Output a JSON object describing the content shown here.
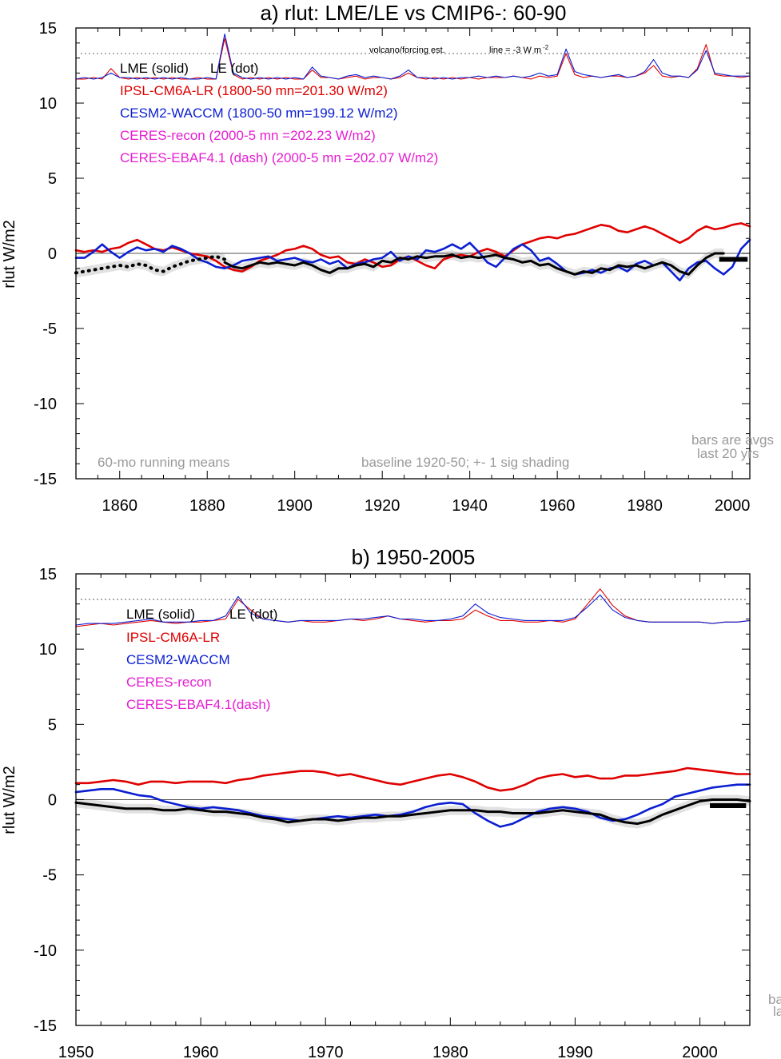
{
  "chart_data": [
    {
      "type": "line",
      "title": "a) rlut: LME/LE vs CMIP6-: 60-90",
      "ylabel": "rlut W/m2",
      "xlabel": "",
      "xlim": [
        1850,
        2004
      ],
      "ylim": [
        -15,
        15
      ],
      "xticks": [
        1860,
        1880,
        1900,
        1920,
        1940,
        1960,
        1980,
        2000
      ],
      "yticks": [
        15,
        10,
        5,
        0,
        -5,
        -10,
        -15
      ],
      "x_step": 2,
      "legend": {
        "lme": "LME (solid)",
        "le": "LE (dot)",
        "ipsl": "IPSL-CM6A-LR (1800-50 mn=201.30 W/m2)",
        "cesm": "CESM2-WACCM (1800-50 mn=199.12 W/m2)",
        "ceres_recon": "CERES-recon (2000-5 mn =202.23 W/m2)",
        "ceres_ebaf": "CERES-EBAF4.1 (dash) (2000-5 mn =202.07 W/m2)"
      },
      "annotations": {
        "volcano": "volcano/forcing est.",
        "line_ref": "line = -3 W m",
        "line_ref_sup": "-2",
        "running": "60-mo running means",
        "baseline": "baseline 1920-50; +- 1 sig shading",
        "bars1": "bars are avgs",
        "bars2": "last 20 yrs"
      },
      "reference_line_y": 13.3,
      "zero_line_y": 0,
      "series": [
        {
          "name": "IPSL-CM6A-LR (volcanic forcing est.)",
          "color": "#e00000",
          "start": 1850,
          "values": [
            11.6,
            11.6,
            11.7,
            11.6,
            12.3,
            11.7,
            11.6,
            11.7,
            11.6,
            11.7,
            11.6,
            11.7,
            11.6,
            11.6,
            11.7,
            11.6,
            11.6,
            14.3,
            11.9,
            11.6,
            11.7,
            11.6,
            11.7,
            11.6,
            11.7,
            11.6,
            11.6,
            12.2,
            11.7,
            11.7,
            11.6,
            11.7,
            11.8,
            11.6,
            11.7,
            11.7,
            11.6,
            11.7,
            12.0,
            11.7,
            11.6,
            11.7,
            11.6,
            11.7,
            11.6,
            11.7,
            11.6,
            11.7,
            11.7,
            11.7,
            11.8,
            11.7,
            11.6,
            11.8,
            11.7,
            11.8,
            13.3,
            11.9,
            11.7,
            11.8,
            11.7,
            11.8,
            11.8,
            11.7,
            11.8,
            12.0,
            12.5,
            11.8,
            11.7,
            11.8,
            11.7,
            12.3,
            13.9,
            11.9,
            11.8,
            11.8,
            11.7,
            11.8
          ]
        },
        {
          "name": "CESM2-WACCM (volcanic forcing est.)",
          "color": "#0a1ed2",
          "start": 1850,
          "values": [
            11.6,
            11.7,
            11.6,
            11.7,
            12.0,
            11.7,
            11.7,
            11.6,
            11.7,
            11.6,
            11.7,
            11.6,
            11.7,
            11.6,
            11.6,
            11.7,
            11.6,
            14.6,
            12.0,
            11.7,
            11.6,
            11.7,
            11.6,
            11.7,
            11.6,
            11.7,
            11.6,
            12.4,
            11.8,
            11.7,
            11.6,
            11.8,
            11.9,
            11.7,
            11.8,
            11.7,
            11.6,
            11.8,
            12.2,
            11.7,
            11.7,
            11.6,
            11.7,
            11.6,
            11.7,
            11.7,
            11.8,
            11.7,
            11.8,
            11.7,
            11.8,
            11.7,
            11.8,
            12.0,
            11.8,
            11.9,
            13.6,
            12.1,
            11.9,
            11.8,
            11.7,
            11.8,
            11.9,
            11.7,
            11.8,
            12.1,
            12.9,
            12.0,
            11.8,
            11.8,
            11.7,
            12.2,
            13.5,
            12.0,
            11.9,
            11.8,
            11.8,
            11.8
          ]
        },
        {
          "name": "IPSL-CM6A-LR",
          "color": "#e00000",
          "start": 1850,
          "values": [
            0.2,
            0.1,
            0.2,
            0.1,
            0.3,
            0.4,
            0.7,
            0.9,
            0.6,
            0.3,
            0.2,
            0.4,
            0.2,
            0.0,
            -0.1,
            -0.2,
            -0.5,
            -0.9,
            -1.1,
            -1.2,
            -0.9,
            -0.5,
            -0.3,
            -0.1,
            0.2,
            0.3,
            0.5,
            0.3,
            -0.1,
            -0.3,
            -0.2,
            -0.6,
            -0.7,
            -0.4,
            -0.6,
            -0.9,
            -0.8,
            -0.4,
            -0.2,
            -0.5,
            -0.8,
            -1.0,
            -0.4,
            -0.2,
            -0.1,
            -0.2,
            0.1,
            0.3,
            0.1,
            -0.2,
            0.2,
            0.6,
            0.8,
            1.0,
            1.1,
            1.0,
            1.2,
            1.3,
            1.5,
            1.7,
            1.9,
            1.8,
            1.5,
            1.4,
            1.6,
            1.8,
            1.6,
            1.3,
            1.0,
            0.7,
            1.0,
            1.5,
            1.8,
            1.6,
            1.7,
            1.9,
            2.0,
            1.8
          ]
        },
        {
          "name": "CESM2-WACCM",
          "color": "#0a1ed2",
          "start": 1850,
          "values": [
            -0.3,
            -0.3,
            0.1,
            0.6,
            0.1,
            -0.3,
            0.1,
            0.4,
            0.2,
            0.3,
            0.1,
            0.5,
            0.3,
            0.0,
            -0.4,
            -0.6,
            -0.9,
            -1.0,
            -0.8,
            -0.5,
            -0.4,
            -0.3,
            -0.2,
            -0.5,
            -0.4,
            -0.3,
            -0.5,
            -0.6,
            -0.4,
            -0.7,
            -0.5,
            -1.0,
            -0.7,
            -0.6,
            -0.4,
            -0.3,
            0.1,
            -0.5,
            -0.2,
            -0.4,
            0.2,
            0.1,
            0.3,
            0.6,
            0.3,
            0.7,
            0.1,
            -0.6,
            -0.9,
            -0.3,
            0.3,
            0.6,
            0.2,
            -0.5,
            -0.3,
            -0.7,
            -1.2,
            -1.4,
            -1.3,
            -1.1,
            -1.3,
            -1.0,
            -0.9,
            -1.2,
            -0.7,
            -0.5,
            -0.8,
            -0.6,
            -1.2,
            -1.8,
            -1.0,
            -0.6,
            -0.5,
            -1.0,
            -1.4,
            -0.9,
            0.3,
            0.9
          ]
        },
        {
          "name": "LME",
          "color": "#000000",
          "start": 1884,
          "values": [
            -0.6,
            -0.9,
            -1.0,
            -0.8,
            -0.6,
            -0.7,
            -0.6,
            -0.7,
            -0.8,
            -0.6,
            -0.8,
            -1.1,
            -1.3,
            -1.0,
            -1.0,
            -0.8,
            -0.7,
            -0.9,
            -0.5,
            -0.6,
            -0.3,
            -0.4,
            -0.2,
            -0.3,
            -0.2,
            -0.2,
            -0.1,
            -0.3,
            -0.2,
            -0.3,
            -0.2,
            -0.1,
            -0.3,
            -0.4,
            -0.6,
            -0.5,
            -0.8,
            -0.7,
            -1.0,
            -1.2,
            -1.4,
            -1.2,
            -1.3,
            -1.0,
            -1.1,
            -0.8,
            -0.9,
            -0.8,
            -1.0,
            -0.8,
            -0.6,
            -0.8,
            -1.2,
            -1.4,
            -0.8,
            -0.3,
            0.0,
            0.0
          ]
        },
        {
          "name": "LE",
          "color": "#000000",
          "start": 1850,
          "values": [
            -1.3,
            -1.2,
            -1.1,
            -1.0,
            -0.9,
            -0.8,
            -0.9,
            -0.7,
            -0.8,
            -1.1,
            -1.2,
            -0.9,
            -0.7,
            -0.5,
            -0.4,
            -0.3,
            -0.2,
            -0.4
          ]
        }
      ],
      "bars": [
        {
          "name": "LME last 20 yrs",
          "y": -0.4,
          "x0": 1997,
          "x1": 2003.5
        }
      ]
    },
    {
      "type": "line",
      "title": "b) 1950-2005",
      "ylabel": "rlut W/m2",
      "xlabel": "",
      "xlim": [
        1950,
        2004
      ],
      "ylim": [
        -15,
        15
      ],
      "xticks": [
        1950,
        1960,
        1970,
        1980,
        1990,
        2000
      ],
      "yticks": [
        15,
        10,
        5,
        0,
        -5,
        -10,
        -15
      ],
      "x_step": 1,
      "legend": {
        "lme": "LME (solid)",
        "le": "LE (dot)",
        "ipsl": "IPSL-CM6A-LR",
        "cesm": "CESM2-WACCM",
        "ceres_recon": "CERES-recon",
        "ceres_ebaf": "CERES-EBAF4.1(dash)"
      },
      "annotations": {
        "bars1": "ba",
        "bars2": "la"
      },
      "reference_line_y": 13.3,
      "zero_line_y": 0,
      "series": [
        {
          "name": "IPSL-CM6A-LR (volcanic forcing est.)",
          "color": "#e00000",
          "start": 1950,
          "values": [
            11.5,
            11.6,
            11.7,
            11.6,
            11.7,
            11.8,
            11.9,
            11.8,
            11.7,
            11.8,
            11.8,
            11.9,
            12.0,
            13.3,
            12.6,
            12.0,
            11.9,
            11.8,
            11.9,
            11.8,
            11.8,
            11.9,
            12.0,
            11.9,
            12.0,
            12.2,
            12.0,
            11.9,
            11.8,
            11.9,
            11.9,
            12.0,
            12.6,
            12.2,
            11.9,
            11.9,
            11.8,
            11.8,
            11.9,
            11.8,
            12.0,
            13.0,
            14.0,
            12.9,
            12.2,
            11.9,
            11.8,
            11.8,
            11.8,
            11.8,
            11.8,
            11.7,
            11.8,
            11.8,
            11.9
          ]
        },
        {
          "name": "CESM2-WACCM (volcanic forcing est.)",
          "color": "#0a1ed2",
          "start": 1950,
          "values": [
            11.6,
            11.7,
            11.7,
            11.7,
            11.8,
            11.9,
            12.0,
            11.8,
            11.8,
            11.8,
            11.9,
            11.9,
            12.2,
            13.5,
            12.4,
            12.0,
            11.9,
            11.8,
            11.9,
            11.9,
            11.9,
            11.9,
            12.0,
            12.0,
            12.1,
            12.2,
            12.0,
            12.0,
            11.9,
            11.9,
            12.0,
            12.2,
            13.0,
            12.4,
            12.1,
            12.0,
            11.9,
            11.9,
            11.9,
            11.9,
            12.1,
            12.8,
            13.6,
            12.6,
            12.1,
            11.9,
            11.8,
            11.8,
            11.8,
            11.8,
            11.8,
            11.7,
            11.8,
            11.8,
            11.9
          ]
        },
        {
          "name": "IPSL-CM6A-LR",
          "color": "#e00000",
          "start": 1950,
          "values": [
            1.1,
            1.1,
            1.2,
            1.3,
            1.2,
            1.0,
            1.2,
            1.2,
            1.1,
            1.2,
            1.2,
            1.2,
            1.1,
            1.3,
            1.4,
            1.6,
            1.7,
            1.8,
            1.9,
            1.9,
            1.8,
            1.6,
            1.7,
            1.5,
            1.3,
            1.1,
            1.0,
            1.2,
            1.4,
            1.6,
            1.7,
            1.5,
            1.2,
            0.8,
            0.6,
            0.7,
            1.0,
            1.4,
            1.6,
            1.7,
            1.5,
            1.6,
            1.4,
            1.4,
            1.6,
            1.6,
            1.7,
            1.8,
            1.9,
            2.1,
            2.0,
            1.9,
            1.8,
            1.7,
            1.7
          ]
        },
        {
          "name": "CESM2-WACCM",
          "color": "#0a1ed2",
          "start": 1950,
          "values": [
            0.5,
            0.6,
            0.7,
            0.7,
            0.5,
            0.3,
            0.2,
            -0.1,
            -0.3,
            -0.5,
            -0.6,
            -0.5,
            -0.6,
            -0.7,
            -0.9,
            -1.1,
            -1.2,
            -1.3,
            -1.4,
            -1.3,
            -1.2,
            -1.1,
            -1.2,
            -1.1,
            -1.0,
            -1.1,
            -1.0,
            -0.8,
            -0.5,
            -0.3,
            -0.2,
            -0.3,
            -0.9,
            -1.4,
            -1.8,
            -1.6,
            -1.2,
            -0.8,
            -0.6,
            -0.5,
            -0.6,
            -0.8,
            -1.2,
            -1.4,
            -1.3,
            -1.0,
            -0.6,
            -0.3,
            0.2,
            0.4,
            0.6,
            0.8,
            0.9,
            1.0,
            1.0
          ]
        },
        {
          "name": "LME",
          "color": "#000000",
          "start": 1950,
          "values": [
            -0.2,
            -0.3,
            -0.4,
            -0.5,
            -0.6,
            -0.6,
            -0.6,
            -0.7,
            -0.7,
            -0.6,
            -0.7,
            -0.8,
            -0.8,
            -0.9,
            -1.0,
            -1.2,
            -1.3,
            -1.5,
            -1.4,
            -1.3,
            -1.3,
            -1.4,
            -1.3,
            -1.2,
            -1.2,
            -1.1,
            -1.1,
            -1.0,
            -0.9,
            -0.8,
            -0.7,
            -0.7,
            -0.7,
            -0.8,
            -0.8,
            -0.9,
            -0.9,
            -0.9,
            -0.8,
            -0.7,
            -0.8,
            -0.9,
            -1.0,
            -1.3,
            -1.5,
            -1.6,
            -1.4,
            -1.0,
            -0.7,
            -0.4,
            -0.1,
            0.0,
            0.0,
            0.0,
            -0.1
          ]
        }
      ],
      "bars": [
        {
          "name": "LME last 20 yrs",
          "y": -0.4,
          "x0": 2000.8,
          "x1": 2003.7
        }
      ]
    }
  ]
}
